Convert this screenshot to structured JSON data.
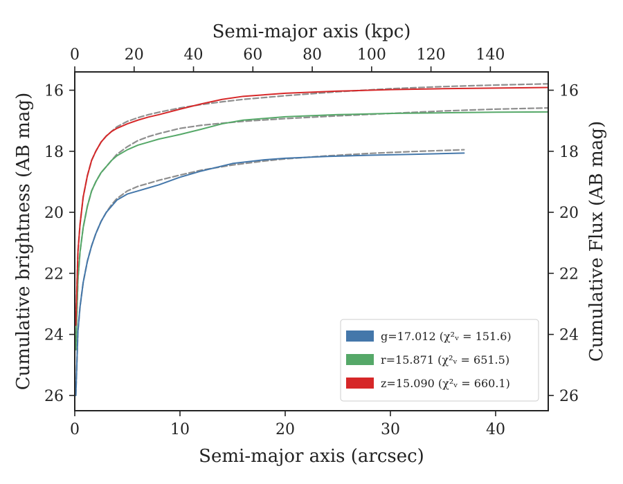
{
  "chart_data": {
    "type": "line",
    "xlabel": "Semi-major axis (arcsec)",
    "x2label": "Semi-major axis (kpc)",
    "ylabel": "Cumulative brightness (AB mag)",
    "y2label": "Cumulative Flux (AB mag)",
    "xlim": [
      0,
      45
    ],
    "x2lim": [
      0,
      159.5
    ],
    "ylim": [
      26.5,
      15.4
    ],
    "y_inverted": true,
    "xticks": [
      "0",
      "10",
      "20",
      "30",
      "40"
    ],
    "x2ticks": [
      "0",
      "20",
      "40",
      "60",
      "80",
      "100",
      "120",
      "140"
    ],
    "yticks": [
      "16",
      "18",
      "20",
      "22",
      "24",
      "26"
    ],
    "grid": false,
    "legend_position": "lower-right",
    "series": [
      {
        "name": "g",
        "legend": "g=17.012 (χ²ᵥ = 151.6)",
        "color": "#4477aa",
        "x": [
          0.1,
          0.3,
          0.5,
          0.8,
          1.2,
          1.6,
          2,
          2.5,
          3,
          3.5,
          4,
          5,
          6,
          7,
          8,
          10,
          12,
          15,
          18,
          20,
          24,
          28,
          32,
          37
        ],
        "y": [
          26.0,
          23.9,
          23.1,
          22.3,
          21.6,
          21.1,
          20.7,
          20.3,
          20.0,
          19.8,
          19.6,
          19.4,
          19.3,
          19.2,
          19.1,
          18.85,
          18.65,
          18.4,
          18.28,
          18.23,
          18.17,
          18.13,
          18.1,
          18.06
        ]
      },
      {
        "name": "g model",
        "color": "#888888",
        "dashed": true,
        "x": [
          0.1,
          0.3,
          0.5,
          0.8,
          1.2,
          1.6,
          2,
          2.5,
          3,
          3.5,
          4,
          5,
          6,
          7,
          8,
          10,
          12,
          15,
          18,
          20,
          24,
          28,
          32,
          37
        ],
        "y": [
          26.0,
          23.9,
          23.1,
          22.3,
          21.6,
          21.1,
          20.7,
          20.3,
          20.0,
          19.75,
          19.55,
          19.3,
          19.15,
          19.05,
          18.95,
          18.78,
          18.62,
          18.45,
          18.32,
          18.25,
          18.15,
          18.07,
          18.01,
          17.95
        ]
      },
      {
        "name": "r",
        "legend": "r=15.871 (χ²ᵥ = 651.5)",
        "color": "#55a868",
        "x": [
          0.1,
          0.3,
          0.5,
          0.8,
          1.2,
          1.6,
          2,
          2.5,
          3,
          3.5,
          4,
          5,
          6,
          7,
          8,
          10,
          12,
          14,
          16,
          20,
          25,
          30,
          35,
          40,
          45
        ],
        "y": [
          24.5,
          22.2,
          21.3,
          20.5,
          19.8,
          19.3,
          19.0,
          18.7,
          18.5,
          18.3,
          18.15,
          17.95,
          17.8,
          17.7,
          17.6,
          17.45,
          17.28,
          17.1,
          16.98,
          16.87,
          16.8,
          16.76,
          16.74,
          16.72,
          16.71
        ]
      },
      {
        "name": "r model",
        "color": "#888888",
        "dashed": true,
        "x": [
          0.1,
          0.3,
          0.5,
          0.8,
          1.2,
          1.6,
          2,
          2.5,
          3,
          3.5,
          4,
          5,
          6,
          7,
          8,
          10,
          12,
          14,
          16,
          20,
          25,
          30,
          35,
          40,
          45
        ],
        "y": [
          24.5,
          22.2,
          21.3,
          20.5,
          19.8,
          19.3,
          19.0,
          18.7,
          18.5,
          18.3,
          18.1,
          17.85,
          17.65,
          17.52,
          17.42,
          17.25,
          17.15,
          17.08,
          17.02,
          16.93,
          16.84,
          16.76,
          16.68,
          16.62,
          16.58
        ]
      },
      {
        "name": "z",
        "legend": "z=15.090 (χ²ᵥ = 660.1)",
        "color": "#d62728",
        "x": [
          0.1,
          0.3,
          0.5,
          0.8,
          1.2,
          1.6,
          2,
          2.5,
          3,
          3.5,
          4,
          5,
          6,
          7,
          8,
          10,
          12,
          14,
          16,
          20,
          25,
          30,
          35,
          40,
          45
        ],
        "y": [
          23.7,
          21.3,
          20.4,
          19.5,
          18.8,
          18.3,
          18.0,
          17.7,
          17.5,
          17.35,
          17.25,
          17.1,
          16.98,
          16.88,
          16.8,
          16.62,
          16.45,
          16.3,
          16.2,
          16.1,
          16.03,
          15.98,
          15.95,
          15.93,
          15.91
        ]
      },
      {
        "name": "z model",
        "color": "#888888",
        "dashed": true,
        "x": [
          0.1,
          0.3,
          0.5,
          0.8,
          1.2,
          1.6,
          2,
          2.5,
          3,
          3.5,
          4,
          5,
          6,
          7,
          8,
          10,
          12,
          14,
          16,
          20,
          25,
          30,
          35,
          40,
          45
        ],
        "y": [
          23.7,
          21.3,
          20.4,
          19.5,
          18.8,
          18.3,
          18.0,
          17.7,
          17.5,
          17.35,
          17.2,
          17.02,
          16.9,
          16.8,
          16.72,
          16.58,
          16.47,
          16.38,
          16.3,
          16.18,
          16.05,
          15.95,
          15.88,
          15.83,
          15.79
        ]
      }
    ]
  }
}
